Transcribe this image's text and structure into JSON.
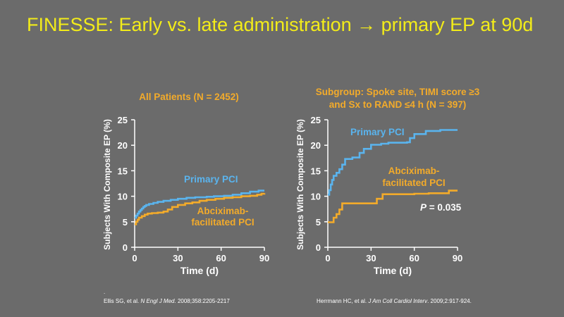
{
  "slide": {
    "title": "FINESSE: Early vs. late administration → primary EP at 90d",
    "colors": {
      "background": "#6b6b6b",
      "title": "#f3ec19",
      "axis": "#ffffff",
      "primary_pci": "#5ab4ee",
      "abciximab": "#f3ab2a",
      "subtitle": "#f3ab2a"
    }
  },
  "references": {
    "left_dot": ".",
    "left_authors": "Ellis SG, et al. ",
    "left_journal": "N Engl J Med",
    "left_citation": ". 2008;358:2205-2217",
    "right_authors": "Herrmann HC, et al. ",
    "right_journal": "J Am Coll Cardiol Interv",
    "right_citation": ". 2009;2:917-924."
  },
  "chart_data": [
    {
      "type": "line",
      "title": "All Patients (N = 2452)",
      "xlabel": "Time (d)",
      "ylabel": "Subjects With Composite EP (%)",
      "xlim": [
        0,
        90
      ],
      "ylim": [
        0,
        25
      ],
      "xticks": [
        0,
        30,
        60,
        90
      ],
      "yticks": [
        0,
        5,
        10,
        15,
        20,
        25
      ],
      "grid": false,
      "series": [
        {
          "name": "Primary PCI",
          "color": "#5ab4ee",
          "points": [
            [
              0,
              5.8
            ],
            [
              1,
              6.2
            ],
            [
              2,
              6.6
            ],
            [
              3,
              7.0
            ],
            [
              4,
              7.3
            ],
            [
              5,
              7.6
            ],
            [
              6,
              7.9
            ],
            [
              7,
              8.1
            ],
            [
              8,
              8.3
            ],
            [
              10,
              8.5
            ],
            [
              13,
              8.7
            ],
            [
              16,
              8.9
            ],
            [
              20,
              9.1
            ],
            [
              25,
              9.3
            ],
            [
              30,
              9.5
            ],
            [
              36,
              9.7
            ],
            [
              42,
              9.8
            ],
            [
              50,
              9.9
            ],
            [
              55,
              10.0
            ],
            [
              62,
              10.1
            ],
            [
              68,
              10.3
            ],
            [
              74,
              10.6
            ],
            [
              80,
              10.9
            ],
            [
              86,
              11.1
            ],
            [
              90,
              11.1
            ]
          ]
        },
        {
          "name": "Abciximab-facilitated PCI",
          "color": "#f3ab2a",
          "points": [
            [
              0,
              4.5
            ],
            [
              1,
              5.0
            ],
            [
              2,
              5.4
            ],
            [
              3,
              5.8
            ],
            [
              5,
              6.1
            ],
            [
              7,
              6.4
            ],
            [
              9,
              6.6
            ],
            [
              12,
              6.7
            ],
            [
              16,
              6.8
            ],
            [
              20,
              7.0
            ],
            [
              23,
              7.4
            ],
            [
              26,
              7.9
            ],
            [
              30,
              8.3
            ],
            [
              35,
              8.6
            ],
            [
              40,
              8.8
            ],
            [
              45,
              9.1
            ],
            [
              50,
              9.3
            ],
            [
              56,
              9.5
            ],
            [
              62,
              9.7
            ],
            [
              68,
              9.8
            ],
            [
              74,
              10.0
            ],
            [
              80,
              10.1
            ],
            [
              85,
              10.3
            ],
            [
              88,
              10.5
            ],
            [
              90,
              10.6
            ]
          ]
        }
      ],
      "annotations": []
    },
    {
      "type": "line",
      "title": "Subgroup: Spoke site, TIMI score ≥3",
      "subtitle": "and Sx to RAND ≤4 h (N = 397)",
      "xlabel": "Time (d)",
      "ylabel": "Subjects With Composite EP (%)",
      "xlim": [
        0,
        90
      ],
      "ylim": [
        0,
        25
      ],
      "xticks": [
        0,
        30,
        60,
        90
      ],
      "yticks": [
        0,
        5,
        10,
        15,
        20,
        25
      ],
      "grid": false,
      "series": [
        {
          "name": "Primary PCI",
          "color": "#5ab4ee",
          "points": [
            [
              0,
              10.3
            ],
            [
              1,
              11.2
            ],
            [
              2,
              12.3
            ],
            [
              3,
              13.2
            ],
            [
              4,
              14.0
            ],
            [
              6,
              14.6
            ],
            [
              8,
              15.3
            ],
            [
              10,
              16.2
            ],
            [
              12,
              17.3
            ],
            [
              17,
              17.6
            ],
            [
              22,
              18.5
            ],
            [
              25,
              19.3
            ],
            [
              30,
              20.1
            ],
            [
              37,
              20.3
            ],
            [
              42,
              20.5
            ],
            [
              55,
              20.6
            ],
            [
              57,
              21.4
            ],
            [
              60,
              22.2
            ],
            [
              68,
              22.8
            ],
            [
              78,
              23.0
            ],
            [
              90,
              23.0
            ]
          ]
        },
        {
          "name": "Abciximab-facilitated PCI",
          "color": "#f3ab2a",
          "points": [
            [
              0,
              4.9
            ],
            [
              3,
              4.9
            ],
            [
              4,
              5.8
            ],
            [
              6,
              6.5
            ],
            [
              8,
              7.4
            ],
            [
              10,
              8.6
            ],
            [
              32,
              8.6
            ],
            [
              34,
              9.5
            ],
            [
              38,
              10.4
            ],
            [
              60,
              10.5
            ],
            [
              70,
              10.6
            ],
            [
              82,
              10.6
            ],
            [
              84,
              11.1
            ],
            [
              90,
              11.1
            ]
          ]
        }
      ],
      "annotations": [
        {
          "text_italic": "P",
          "text": " = 0.035"
        }
      ]
    }
  ]
}
